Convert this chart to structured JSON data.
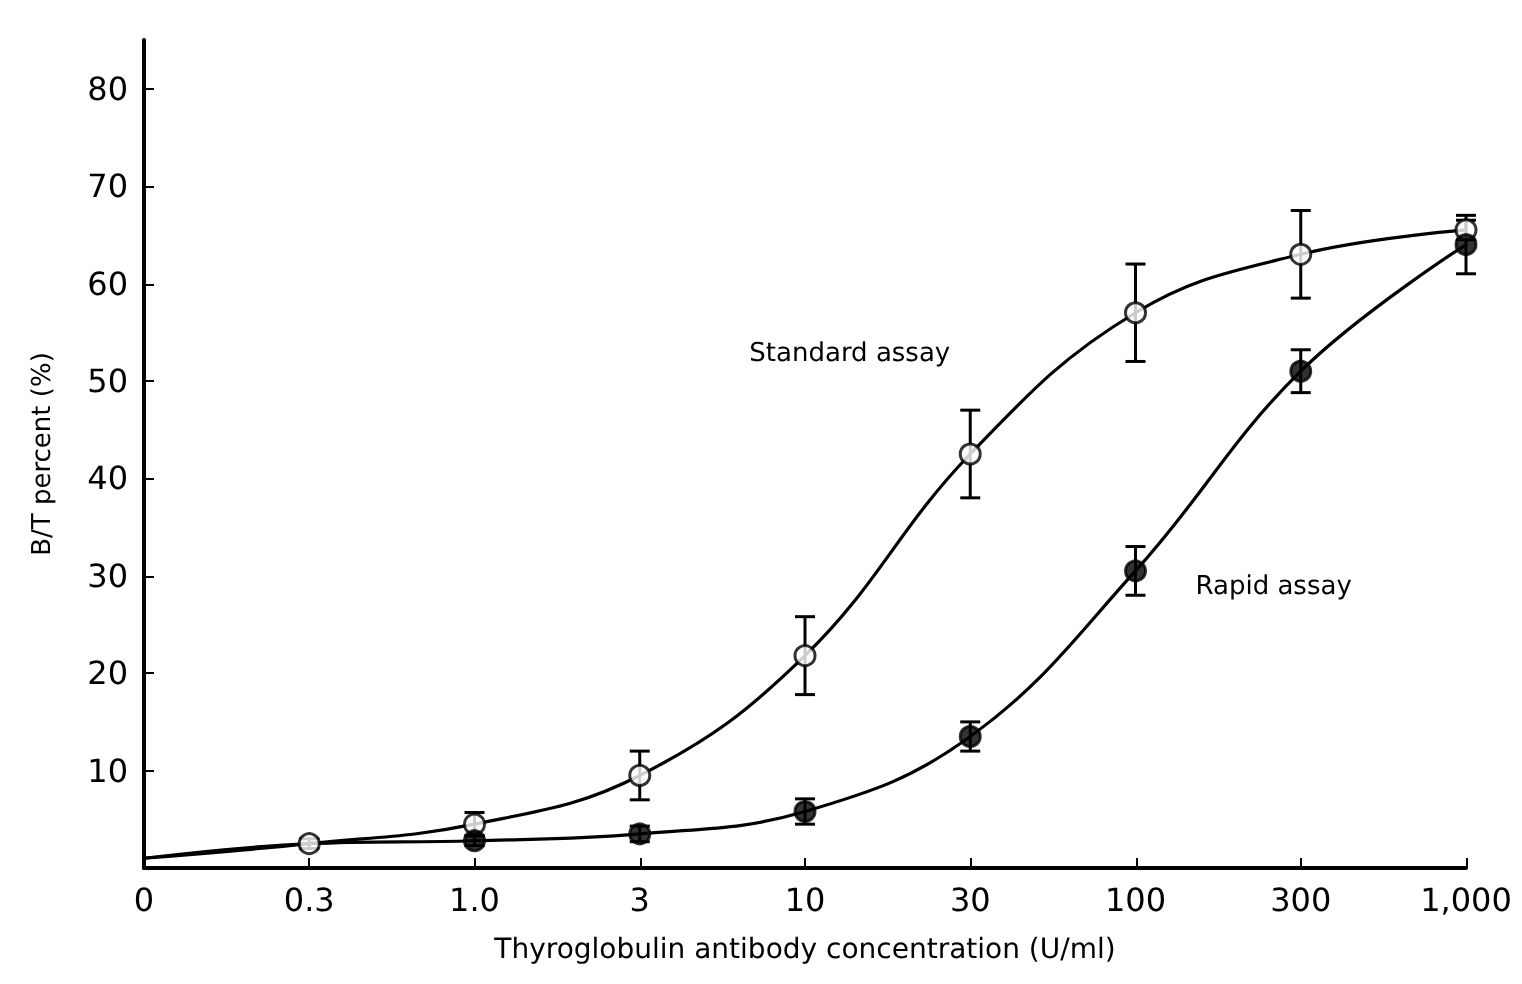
{
  "chart_data": {
    "type": "line",
    "xlabel": "Thyroglobulin antibody concentration (U/ml)",
    "ylabel": "B/T percent (%)",
    "categories": [
      "0",
      "0.3",
      "1.0",
      "3",
      "10",
      "30",
      "100",
      "300",
      "1,000"
    ],
    "ylim": [
      0,
      85
    ],
    "yticks": [
      10,
      20,
      30,
      40,
      50,
      60,
      70,
      80
    ],
    "grid": false,
    "legend": false,
    "series": [
      {
        "name": "Standard assay",
        "color": "#000000",
        "marker": "none",
        "values": [
          1,
          2.5,
          4.5,
          9.5,
          21.8,
          42.5,
          57,
          63,
          65.5
        ]
      },
      {
        "name": "Rapid assay",
        "color": "#000000",
        "marker": "none",
        "values": [
          1,
          2.5,
          2.8,
          3.5,
          5.8,
          13.5,
          30.5,
          51,
          64
        ]
      },
      {
        "type": "scatter",
        "color": "#ffffff",
        "marker": "circle",
        "values": [
          null,
          2.5,
          4.5,
          9.5,
          21.8,
          42.5,
          57,
          63,
          65.5
        ],
        "errors": [
          null,
          0.5,
          1.2,
          2.5,
          4,
          4.5,
          5,
          4.5,
          1
        ]
      },
      {
        "type": "scatter",
        "color": "#000000",
        "marker": "circle",
        "values": [
          null,
          null,
          2.8,
          3.5,
          5.8,
          13.5,
          30.5,
          51,
          64
        ],
        "errors": [
          null,
          null,
          0.5,
          0.8,
          1.3,
          1.5,
          2.5,
          2.2,
          3
        ]
      }
    ]
  }
}
